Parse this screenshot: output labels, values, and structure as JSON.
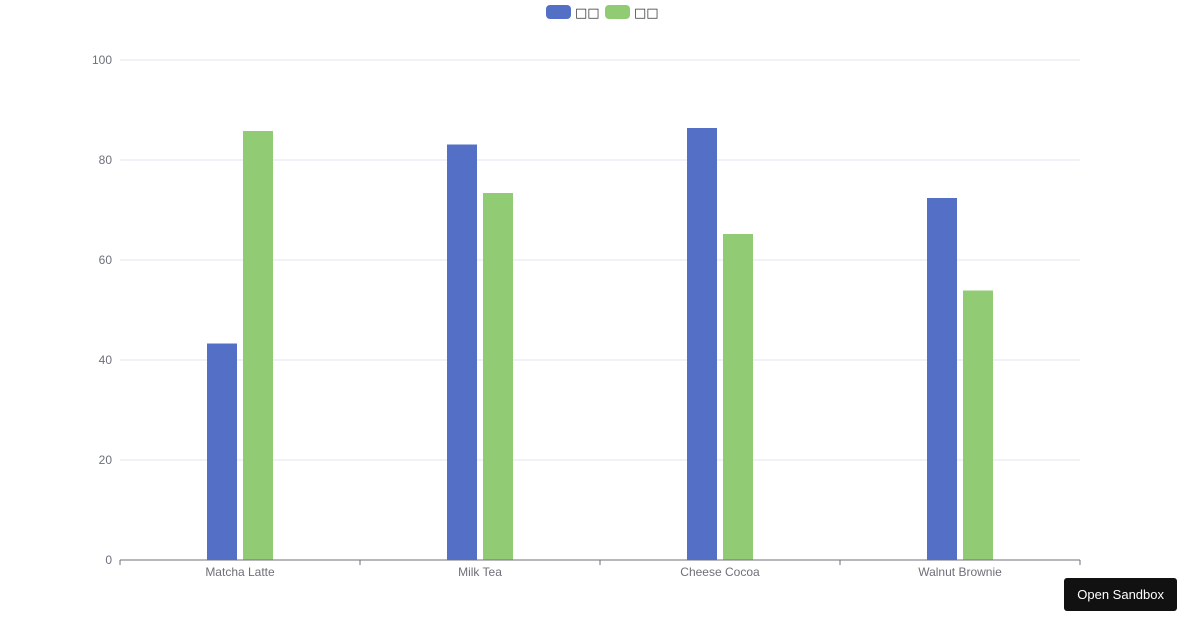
{
  "chart_data": {
    "type": "bar",
    "categories": [
      "Matcha Latte",
      "Milk Tea",
      "Cheese Cocoa",
      "Walnut Brownie"
    ],
    "series": [
      {
        "name": "□□",
        "values": [
          43.3,
          83.1,
          86.4,
          72.4
        ],
        "color": "#5470c6"
      },
      {
        "name": "□□",
        "values": [
          85.8,
          73.4,
          65.2,
          53.9
        ],
        "color": "#91cc75"
      }
    ],
    "title": "",
    "xlabel": "",
    "ylabel": "",
    "ylim": [
      0,
      100
    ],
    "yticks": [
      "0",
      "20",
      "40",
      "60",
      "80",
      "100"
    ],
    "grid": true,
    "legend_position": "top-center"
  },
  "toolbar": {
    "sandbox_label": "Open Sandbox"
  }
}
